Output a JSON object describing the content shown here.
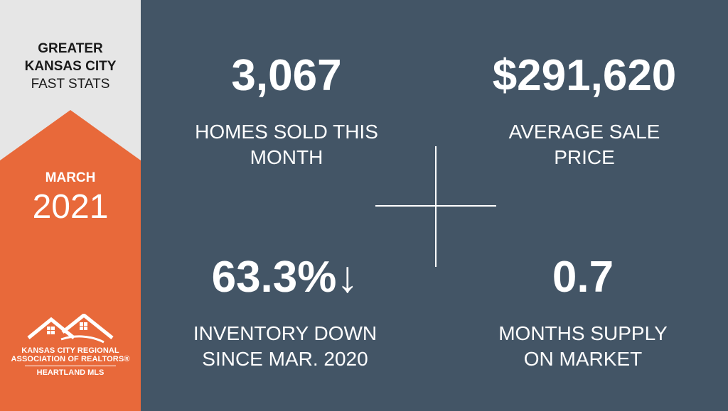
{
  "sidebar": {
    "title_line1": "GREATER",
    "title_line2": "KANSAS CITY",
    "subtitle": "FAST STATS",
    "month": "MARCH",
    "year": "2021",
    "accent_color": "#e8693a",
    "logo": {
      "line1": "KANSAS CITY REGIONAL",
      "line2": "ASSOCIATION OF REALTORS®",
      "line3": "HEARTLAND MLS",
      "icon": "house-roofs-icon"
    }
  },
  "stats": [
    {
      "value": "3,067",
      "label": "HOMES SOLD THIS\nMONTH"
    },
    {
      "value": "$291,620",
      "label": "AVERAGE SALE\nPRICE"
    },
    {
      "value": "63.3%↓",
      "label": "INVENTORY DOWN\nSINCE MAR. 2020"
    },
    {
      "value": "0.7",
      "label": "MONTHS SUPPLY\nON MARKET"
    }
  ],
  "colors": {
    "panel_background": "#435566",
    "sidebar_background": "#e6e6e6",
    "text_light": "#ffffff",
    "text_dark": "#1a1a1a"
  }
}
